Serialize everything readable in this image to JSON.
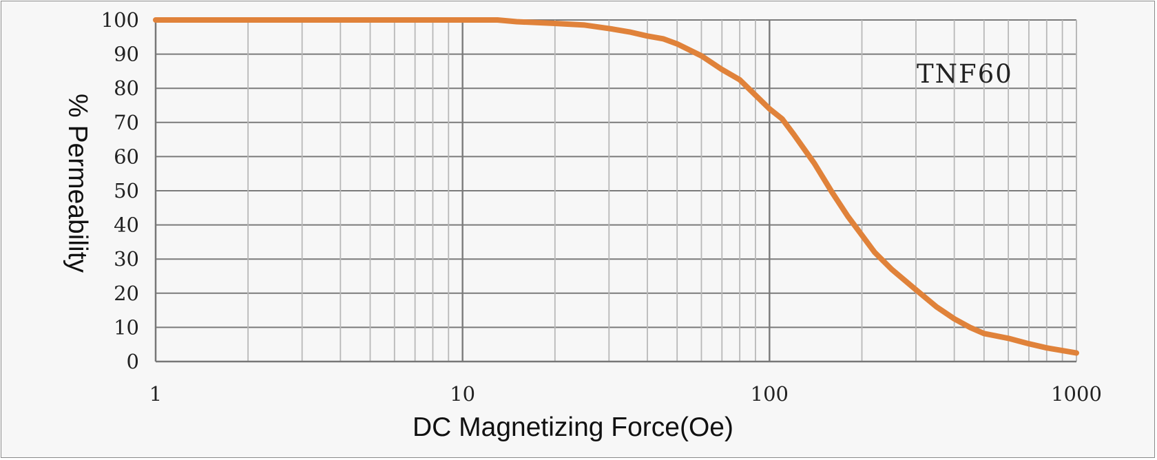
{
  "chart_data": {
    "type": "line",
    "title": "",
    "xlabel": "DC Magnetizing Force(Oe)",
    "ylabel": "% Permeability",
    "xscale": "log",
    "xlim": [
      1,
      1000
    ],
    "ylim": [
      0,
      100
    ],
    "x_ticks": [
      1,
      10,
      100,
      1000
    ],
    "x_tick_labels": [
      "1",
      "10",
      "100",
      "1000"
    ],
    "y_ticks": [
      0,
      10,
      20,
      30,
      40,
      50,
      60,
      70,
      80,
      90,
      100
    ],
    "y_tick_labels": [
      "0",
      "10",
      "20",
      "30",
      "40",
      "50",
      "60",
      "70",
      "80",
      "90",
      "100"
    ],
    "grid": true,
    "legend": "none",
    "annotation": "TNF60",
    "line_color": "#e0823a",
    "grid_color": "#b8b8b8",
    "major_grid_color": "#7a7a7a",
    "series": [
      {
        "x": [
          1,
          2,
          5,
          10,
          13,
          15,
          20,
          25,
          30,
          35,
          40,
          45,
          50,
          60,
          70,
          80,
          90,
          100,
          110,
          120,
          140,
          160,
          180,
          200,
          220,
          250,
          300,
          350,
          400,
          450,
          500,
          600,
          700,
          800,
          900,
          1000
        ],
        "y": [
          100,
          100,
          100,
          100,
          100,
          99.5,
          99,
          98.5,
          97.5,
          96.5,
          95.3,
          94.5,
          93,
          89.5,
          85.5,
          82.5,
          78,
          74,
          71,
          66.5,
          58,
          49.5,
          42.5,
          37,
          32,
          27,
          21,
          16,
          12.5,
          10,
          8.2,
          6.8,
          5.2,
          4,
          3.2,
          2.5
        ]
      }
    ]
  }
}
